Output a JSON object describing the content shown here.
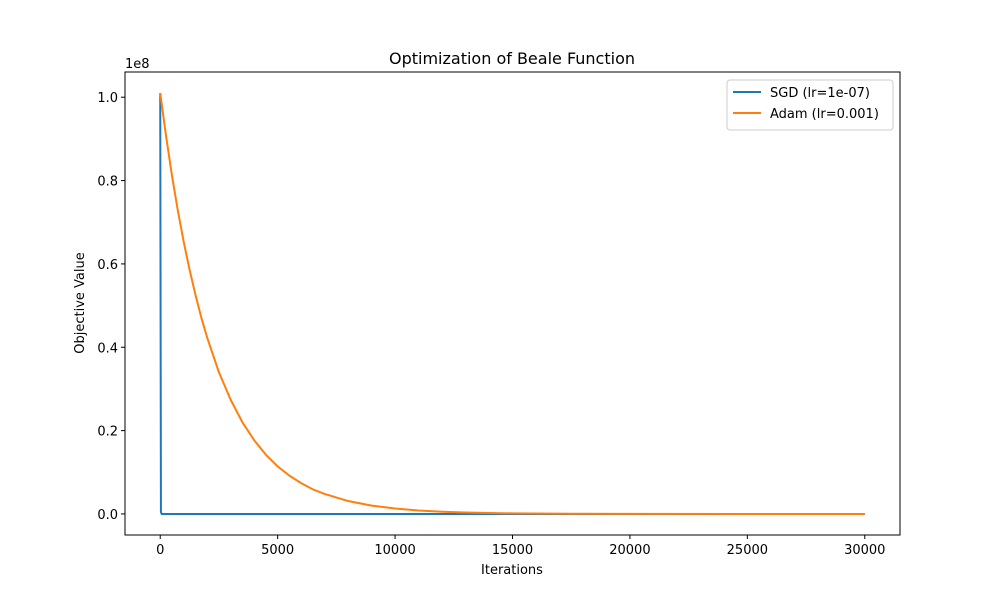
{
  "chart_data": {
    "type": "line",
    "title": "Optimization of Beale Function",
    "xlabel": "Iterations",
    "ylabel": "Objective Value",
    "y_offset_label": "1e8",
    "xlim": [
      -1500,
      31500
    ],
    "ylim": [
      -5050000,
      106050000
    ],
    "x_ticks": [
      0,
      5000,
      10000,
      15000,
      20000,
      25000,
      30000
    ],
    "x_tick_labels": [
      "0",
      "5000",
      "10000",
      "15000",
      "20000",
      "25000",
      "30000"
    ],
    "y_ticks": [
      0,
      20000000,
      40000000,
      60000000,
      80000000,
      100000000
    ],
    "y_tick_labels": [
      "0.0",
      "0.2",
      "0.4",
      "0.6",
      "0.8",
      "1.0"
    ],
    "grid": false,
    "legend_position": "top-right",
    "series": [
      {
        "name": "SGD (lr=1e-07)",
        "color": "#1f77b4",
        "x": [
          0,
          30,
          60,
          30000
        ],
        "y": [
          101000000,
          500000,
          0,
          0
        ]
      },
      {
        "name": "Adam (lr=0.001)",
        "color": "#ff7f0e",
        "x": [
          0,
          250,
          500,
          750,
          1000,
          1250,
          1500,
          1750,
          2000,
          2500,
          3000,
          3500,
          4000,
          4500,
          5000,
          5500,
          6000,
          6500,
          7000,
          8000,
          9000,
          10000,
          11000,
          12000,
          13000,
          14000,
          15000,
          17500,
          20000,
          25000,
          30000
        ],
        "y": [
          101000000,
          90600000,
          81200000,
          72800000,
          65300000,
          58600000,
          52600000,
          47100000,
          42300000,
          34000000,
          27400000,
          22000000,
          17700000,
          14200000,
          11400000,
          9200000,
          7400000,
          5900000,
          4800000,
          3100000,
          2000000,
          1300000,
          830000,
          540000,
          350000,
          220000,
          140000,
          50000,
          15000,
          2000,
          0
        ]
      }
    ]
  }
}
